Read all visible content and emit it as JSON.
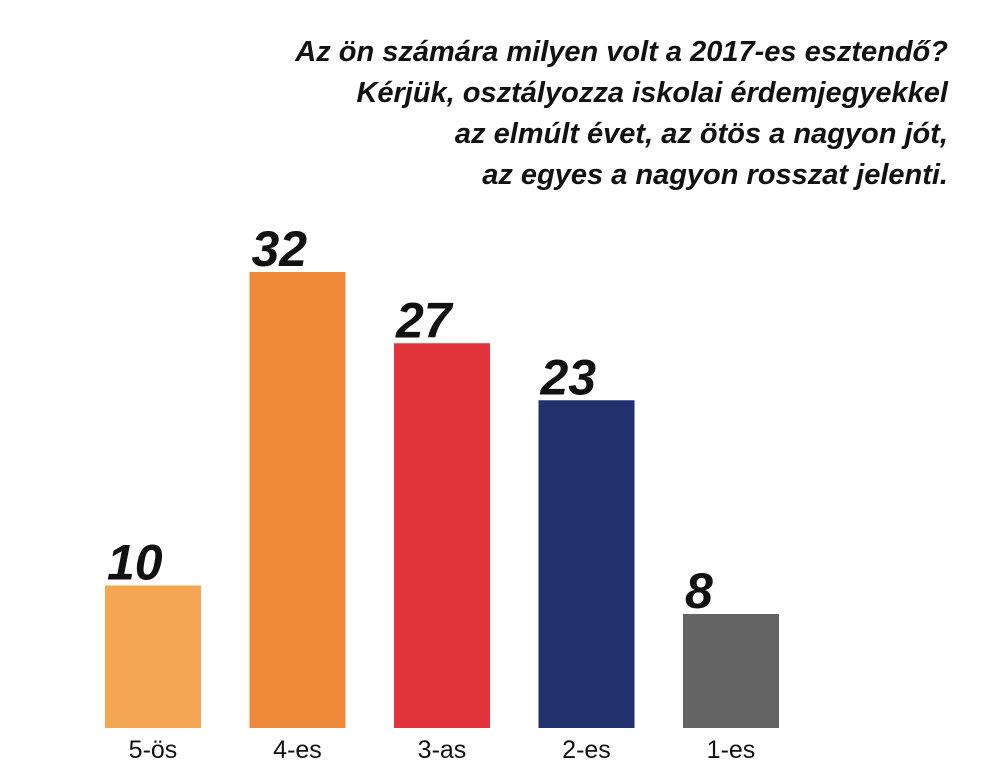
{
  "chart_data": {
    "type": "bar",
    "title_lines": [
      "Az ön számára milyen volt a 2017-es esztendő?",
      "Kérjük, osztályozza iskolai érdemjegyekkel",
      "az elmúlt évet, az ötös a nagyon jót,",
      "az egyes a nagyon rosszat jelenti."
    ],
    "categories": [
      "5-ös",
      "4-es",
      "3-as",
      "2-es",
      "1-es"
    ],
    "values": [
      10,
      32,
      27,
      23,
      8
    ],
    "colors": [
      "#f4a652",
      "#ee8a3a",
      "#e0333a",
      "#22306e",
      "#646464"
    ],
    "xlabel": "",
    "ylabel": "",
    "ylim": [
      0,
      32
    ],
    "grid": false,
    "legend": "none"
  }
}
